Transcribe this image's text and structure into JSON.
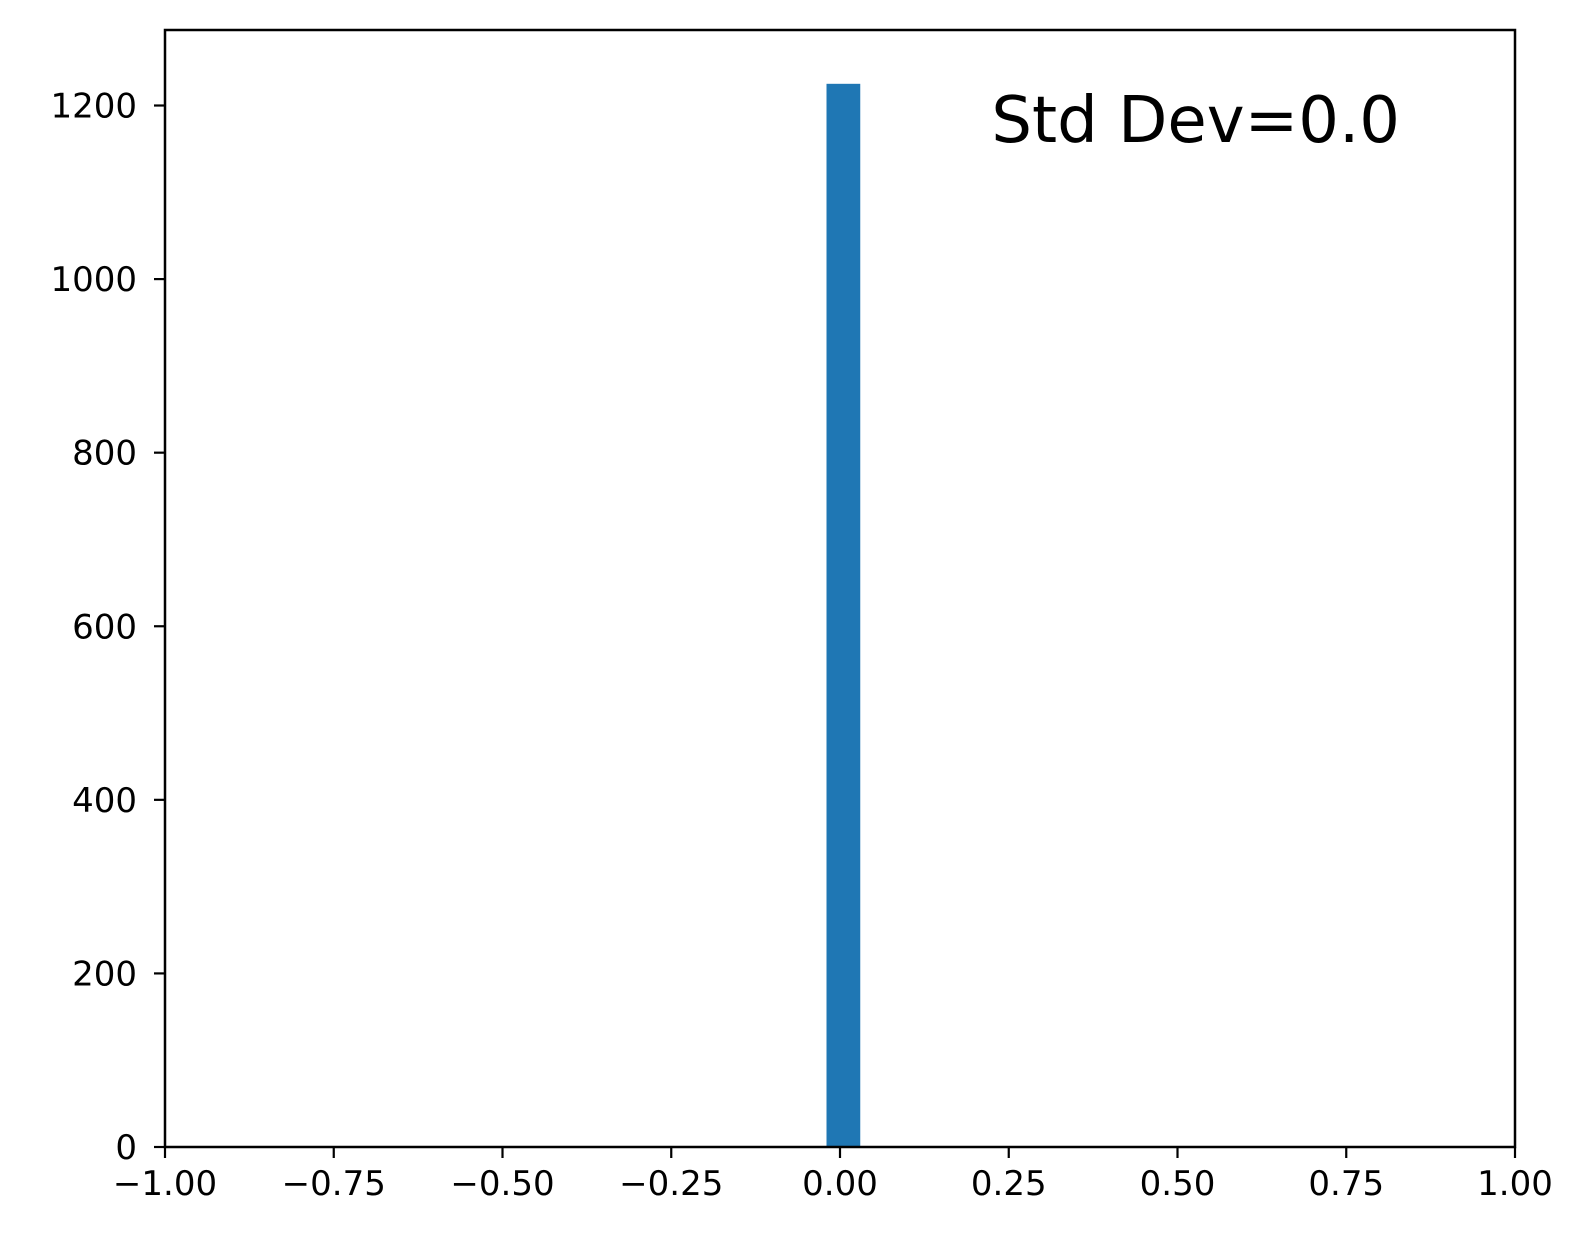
{
  "chart_data": {
    "type": "bar",
    "title": "",
    "xlabel": "",
    "ylabel": "",
    "xlim": [
      -1.0,
      1.0
    ],
    "ylim": [
      0,
      1287
    ],
    "grid": false,
    "bars": [
      {
        "x0": -0.02,
        "x1": 0.03,
        "value": 1225
      }
    ],
    "bar_color": "#1f77b4",
    "x_ticks": [
      {
        "value": -1.0,
        "label": "−1.00"
      },
      {
        "value": -0.75,
        "label": "−0.75"
      },
      {
        "value": -0.5,
        "label": "−0.50"
      },
      {
        "value": -0.25,
        "label": "−0.25"
      },
      {
        "value": 0.0,
        "label": "0.00"
      },
      {
        "value": 0.25,
        "label": "0.25"
      },
      {
        "value": 0.5,
        "label": "0.50"
      },
      {
        "value": 0.75,
        "label": "0.75"
      },
      {
        "value": 1.0,
        "label": "1.00"
      }
    ],
    "y_ticks": [
      {
        "value": 0,
        "label": "0"
      },
      {
        "value": 200,
        "label": "200"
      },
      {
        "value": 400,
        "label": "400"
      },
      {
        "value": 600,
        "label": "600"
      },
      {
        "value": 800,
        "label": "800"
      },
      {
        "value": 1000,
        "label": "1000"
      },
      {
        "value": 1200,
        "label": "1200"
      }
    ],
    "annotation": "Std Dev=0.0"
  }
}
